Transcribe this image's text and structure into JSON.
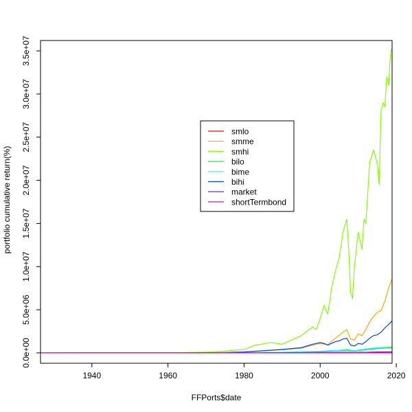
{
  "chart_data": {
    "type": "line",
    "title": "",
    "xlabel": "FFPorts$date",
    "ylabel": "portfolio cumulative return(%)",
    "xlim": [
      1926.5,
      2018.9
    ],
    "ylim": [
      -1200000,
      36200000
    ],
    "x_ticks": [
      1940,
      1960,
      1980,
      2000,
      2020
    ],
    "x_tick_labels": [
      "1940",
      "1960",
      "1980",
      "2000",
      "2020"
    ],
    "y_ticks": [
      0,
      5000000,
      10000000,
      15000000,
      20000000,
      25000000,
      30000000,
      35000000
    ],
    "y_tick_labels": [
      "0.0e+00",
      "5.0e+06",
      "1.0e+07",
      "1.5e+07",
      "2.0e+07",
      "2.5e+07",
      "3.0e+07",
      "3.5e+07"
    ],
    "grid": false,
    "legend_position": "center",
    "series": [
      {
        "name": "smlo",
        "color": "#FF0000",
        "x": [
          1926.5,
          1960,
          1980,
          1990,
          2000,
          2007,
          2009,
          2012,
          2015,
          2018.9
        ],
        "y": [
          0,
          1000,
          8000,
          15000,
          40000,
          70000,
          40000,
          70000,
          100000,
          120000
        ]
      },
      {
        "name": "smme",
        "color": "#FFA500",
        "x": [
          1926.5,
          1960,
          1970,
          1975,
          1980,
          1985,
          1990,
          1995,
          1998,
          2000,
          2002,
          2004,
          2006,
          2007,
          2008,
          2009,
          2010,
          2011,
          2012,
          2013,
          2014,
          2015,
          2016,
          2017,
          2018,
          2018.9
        ],
        "y": [
          0,
          5000,
          20000,
          50000,
          120000,
          250000,
          350000,
          550000,
          900000,
          1100000,
          950000,
          1700000,
          2400000,
          2700000,
          1600000,
          1500000,
          2200000,
          2000000,
          2700000,
          3600000,
          4200000,
          4700000,
          4900000,
          6000000,
          7500000,
          8600000
        ]
      },
      {
        "name": "smhi",
        "color": "#80FF00",
        "x": [
          1926.5,
          1960,
          1970,
          1975,
          1980,
          1983,
          1987,
          1990,
          1995,
          1998,
          1999,
          2000,
          2001,
          2002,
          2003,
          2004,
          2005,
          2006,
          2007,
          2007.5,
          2008,
          2008.5,
          2009,
          2010,
          2011,
          2011.5,
          2012,
          2013,
          2014,
          2015,
          2015.5,
          2016,
          2016.5,
          2017,
          2017.5,
          2018,
          2018.3,
          2018.6,
          2018.9
        ],
        "y": [
          0,
          20000,
          80000,
          200000,
          400000,
          900000,
          1200000,
          1000000,
          2000000,
          3000000,
          2700000,
          4000000,
          5500000,
          4500000,
          7500000,
          9500000,
          11000000,
          14000000,
          15500000,
          12000000,
          7000000,
          6300000,
          10000000,
          14000000,
          12000000,
          15500000,
          15000000,
          22000000,
          23500000,
          22000000,
          19500000,
          28000000,
          29000000,
          28500000,
          32000000,
          31000000,
          33500000,
          35000000,
          35300000
        ]
      },
      {
        "name": "bilo",
        "color": "#00FF40",
        "x": [
          1926.5,
          1970,
          1980,
          1990,
          2000,
          2007,
          2009,
          2012,
          2015,
          2018.9
        ],
        "y": [
          0,
          5000,
          20000,
          60000,
          150000,
          300000,
          200000,
          350000,
          500000,
          600000
        ]
      },
      {
        "name": "bime",
        "color": "#00FFFF",
        "x": [
          1926.5,
          1970,
          1980,
          1990,
          2000,
          2005,
          2007,
          2009,
          2012,
          2015,
          2018.9
        ],
        "y": [
          0,
          8000,
          25000,
          70000,
          180000,
          300000,
          400000,
          250000,
          450000,
          600000,
          700000
        ]
      },
      {
        "name": "bihi",
        "color": "#0040FF",
        "x": [
          1926.5,
          1960,
          1970,
          1975,
          1980,
          1985,
          1990,
          1995,
          1998,
          2000,
          2001,
          2002,
          2003,
          2004,
          2005,
          2006,
          2007,
          2008,
          2009,
          2010,
          2011,
          2012,
          2013,
          2014,
          2015,
          2016,
          2017,
          2018,
          2018.9
        ],
        "y": [
          0,
          5000,
          20000,
          40000,
          100000,
          250000,
          400000,
          600000,
          1000000,
          1200000,
          1100000,
          900000,
          1100000,
          1300000,
          1400000,
          1600000,
          1700000,
          900000,
          800000,
          1100000,
          1000000,
          1300000,
          1700000,
          2000000,
          2100000,
          2400000,
          2900000,
          3300000,
          3700000
        ]
      },
      {
        "name": "market",
        "color": "#8000FF",
        "x": [
          1926.5,
          1970,
          1980,
          1990,
          2000,
          2007,
          2009,
          2012,
          2015,
          2018.9
        ],
        "y": [
          0,
          3000,
          10000,
          30000,
          60000,
          70000,
          50000,
          70000,
          80000,
          90000
        ]
      },
      {
        "name": "shortTermbond",
        "color": "#FF00BF",
        "x": [
          1926.5,
          1960,
          1980,
          2000,
          2018.9
        ],
        "y": [
          0,
          50,
          100,
          400,
          600
        ]
      }
    ]
  }
}
